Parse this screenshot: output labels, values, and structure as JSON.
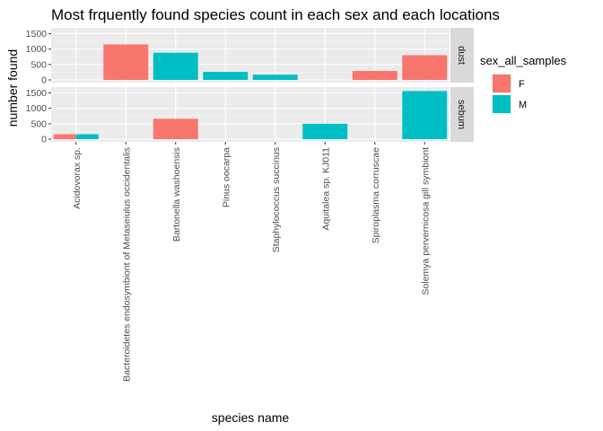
{
  "chart_data": {
    "type": "bar",
    "title": "Most frquently found species count in each sex and each locations",
    "xlabel": "species name",
    "ylabel": "number found",
    "legend": {
      "title": "sex_all_samples",
      "placement": "right",
      "entries": [
        {
          "label": "F",
          "color": "#F8766D"
        },
        {
          "label": "M",
          "color": "#00BFC4"
        }
      ]
    },
    "ylim": [
      0,
      1600
    ],
    "yticks": [
      "0",
      "500",
      "1000",
      "1500"
    ],
    "categories": [
      "Acidovorax sp.",
      "Bacteroidetes endosymbiont of Metaseiulus occidentalis",
      "Bartonella washoensis",
      "Pinus oocarpa",
      "Staphylococcus succinus",
      "Aquitalea sp. KJ011",
      "Spiroplasma corruscae",
      "Solemya pervernicosa gill symbiont"
    ],
    "grid": true,
    "facets": [
      {
        "label": "dust",
        "bars": [
          {
            "category": 1,
            "sex": "F",
            "value": 1150,
            "dodge": "single"
          },
          {
            "category": 2,
            "sex": "M",
            "value": 880,
            "dodge": "single"
          },
          {
            "category": 3,
            "sex": "M",
            "value": 260,
            "dodge": "single"
          },
          {
            "category": 4,
            "sex": "M",
            "value": 170,
            "dodge": "single"
          },
          {
            "category": 6,
            "sex": "F",
            "value": 290,
            "dodge": "single"
          },
          {
            "category": 7,
            "sex": "F",
            "value": 800,
            "dodge": "single"
          }
        ]
      },
      {
        "label": "sebum",
        "bars": [
          {
            "category": 0,
            "sex": "F",
            "value": 160,
            "dodge": "left"
          },
          {
            "category": 0,
            "sex": "M",
            "value": 160,
            "dodge": "right"
          },
          {
            "category": 2,
            "sex": "F",
            "value": 660,
            "dodge": "single"
          },
          {
            "category": 5,
            "sex": "M",
            "value": 500,
            "dodge": "single"
          },
          {
            "category": 7,
            "sex": "M",
            "value": 1560,
            "dodge": "single"
          }
        ]
      }
    ]
  }
}
